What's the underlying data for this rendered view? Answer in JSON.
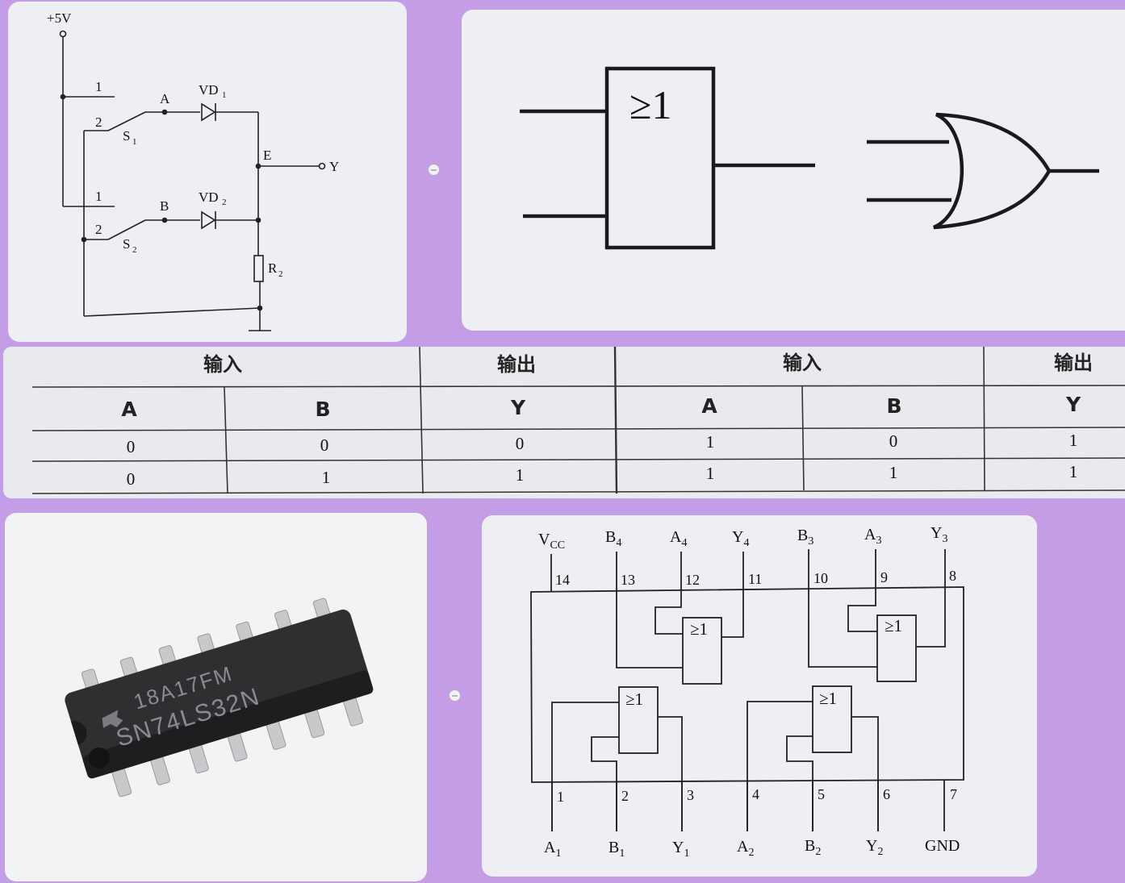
{
  "circuit": {
    "supply": "+5V",
    "switch1": "S",
    "switch1_sub": "1",
    "switch2": "S",
    "switch2_sub": "2",
    "pos1": "1",
    "pos2": "2",
    "node_a": "A",
    "node_b": "B",
    "node_e": "E",
    "output": "Y",
    "diode1": "VD",
    "diode1_sub": "1",
    "diode2": "VD",
    "diode2_sub": "2",
    "resistor": "R",
    "resistor_sub": "2"
  },
  "symbols": {
    "iec_label": "≥1"
  },
  "truth_table": {
    "input_header": "输入",
    "output_header": "输出",
    "columns": [
      "A",
      "B",
      "Y"
    ],
    "left_rows": [
      [
        "0",
        "0",
        "0"
      ],
      [
        "0",
        "1",
        "1"
      ]
    ],
    "right_rows": [
      [
        "1",
        "0",
        "1"
      ],
      [
        "1",
        "1",
        "1"
      ]
    ]
  },
  "chip": {
    "marking_line1": "18A17FM",
    "marking_line2": "SN74LS32N"
  },
  "pinout": {
    "gate_label": "≥1",
    "top_pins": [
      {
        "name": "V",
        "sub": "CC",
        "num": "14"
      },
      {
        "name": "B",
        "sub": "4",
        "num": "13"
      },
      {
        "name": "A",
        "sub": "4",
        "num": "12"
      },
      {
        "name": "Y",
        "sub": "4",
        "num": "11"
      },
      {
        "name": "B",
        "sub": "3",
        "num": "10"
      },
      {
        "name": "A",
        "sub": "3",
        "num": "9"
      },
      {
        "name": "Y",
        "sub": "3",
        "num": "8"
      }
    ],
    "bottom_pins": [
      {
        "name": "A",
        "sub": "1",
        "num": "1"
      },
      {
        "name": "B",
        "sub": "1",
        "num": "2"
      },
      {
        "name": "Y",
        "sub": "1",
        "num": "3"
      },
      {
        "name": "A",
        "sub": "2",
        "num": "4"
      },
      {
        "name": "B",
        "sub": "2",
        "num": "5"
      },
      {
        "name": "Y",
        "sub": "2",
        "num": "6"
      },
      {
        "name": "GND",
        "sub": "",
        "num": "7"
      }
    ]
  }
}
